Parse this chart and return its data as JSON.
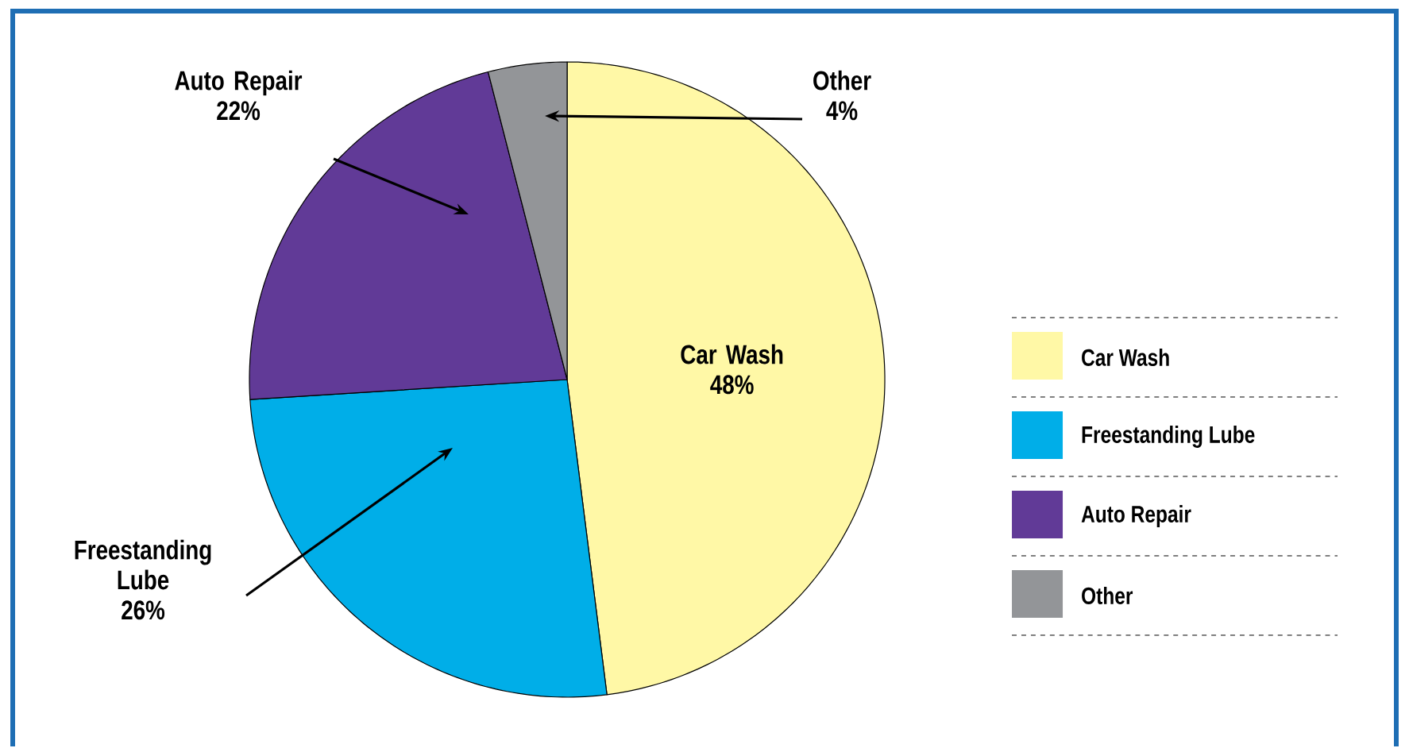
{
  "chart_data": {
    "type": "pie",
    "categories": [
      "Car Wash",
      "Freestanding Lube",
      "Auto Repair",
      "Other"
    ],
    "values": [
      48,
      26,
      22,
      4
    ],
    "colors": [
      "#fff8a6",
      "#00aee8",
      "#613a97",
      "#939598"
    ],
    "value_labels": [
      "48%",
      "26%",
      "22%",
      "4%"
    ],
    "legend": "right"
  }
}
